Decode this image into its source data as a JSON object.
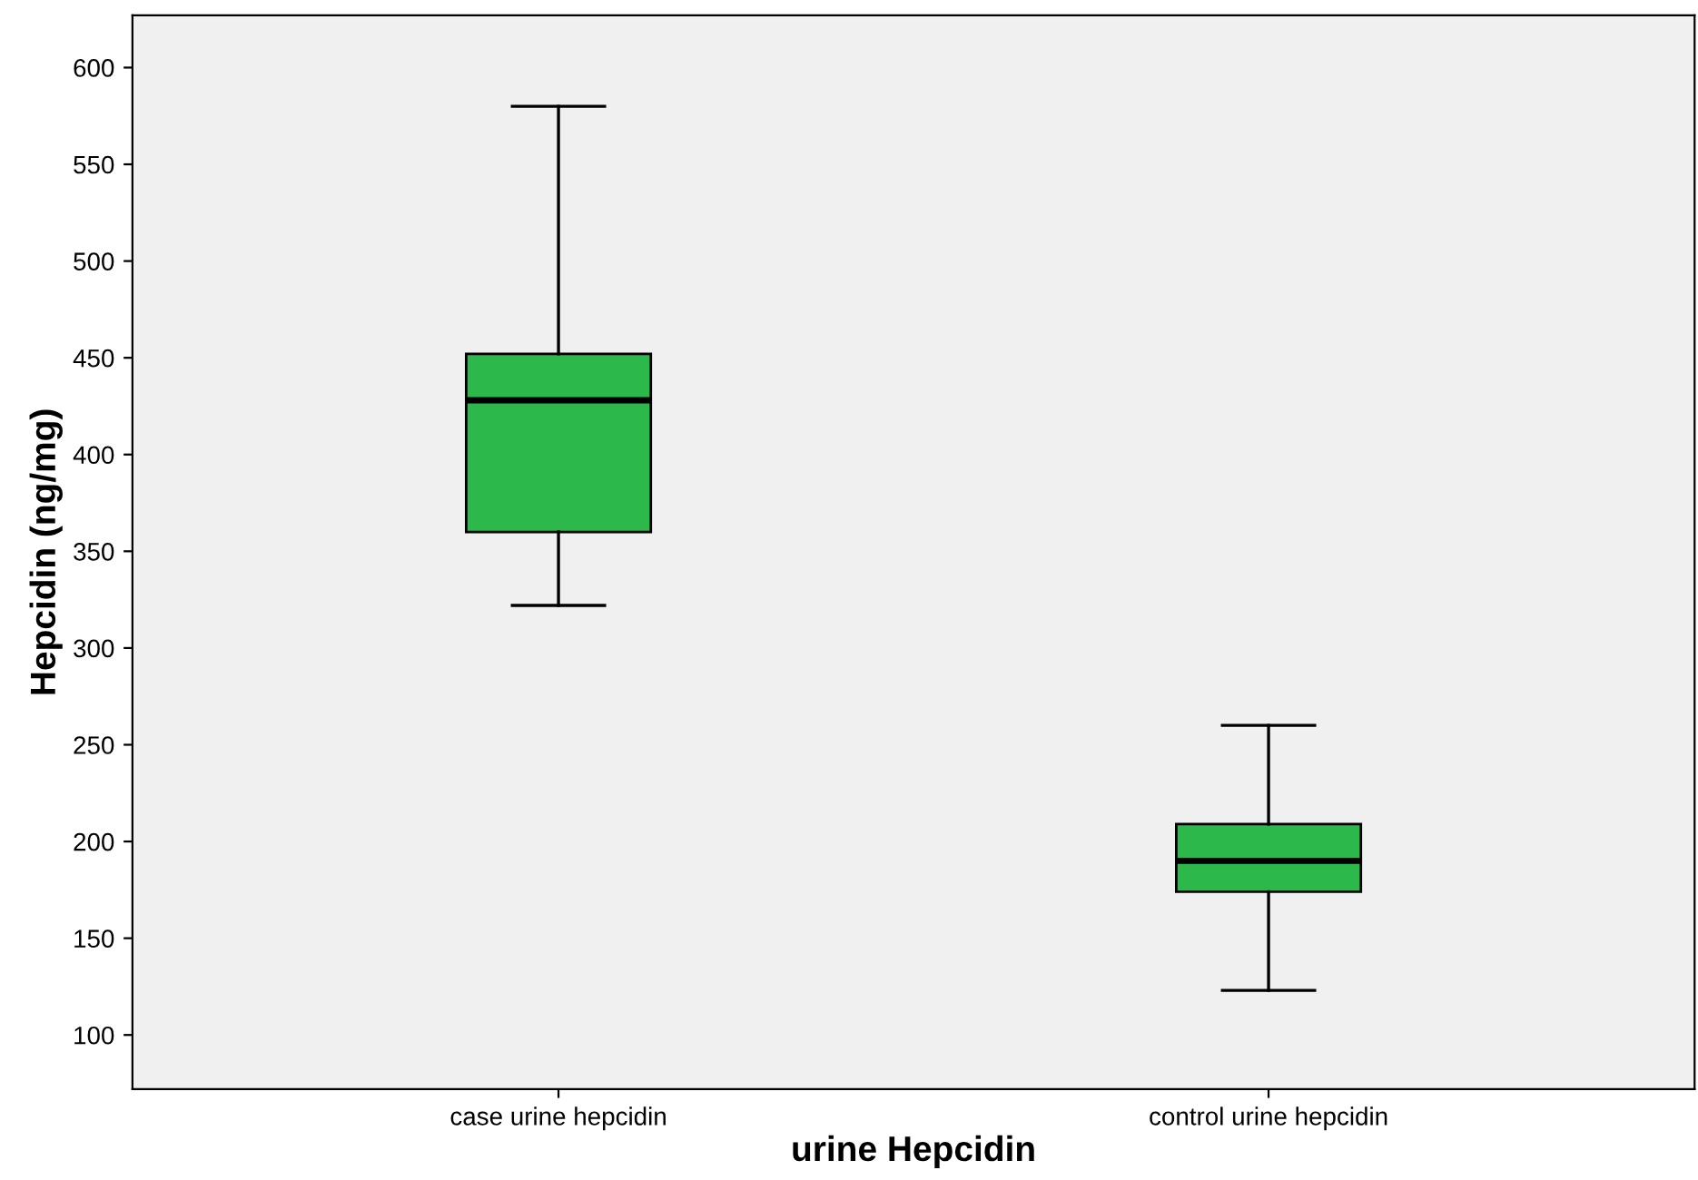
{
  "chart_data": {
    "type": "box",
    "xlabel": "urine Hepcidin",
    "ylabel": "Hepcidin (ng/mg)",
    "categories": [
      "case urine hepcidin",
      "control urine hepcidin"
    ],
    "boxes": [
      {
        "low": 322,
        "q1": 360,
        "median": 428,
        "q3": 452,
        "high": 580
      },
      {
        "low": 123,
        "q1": 174,
        "median": 190,
        "q3": 209,
        "high": 260
      }
    ],
    "color": "#2db84b",
    "ylim": [
      72,
      627
    ],
    "yticks": [
      100,
      150,
      200,
      250,
      300,
      350,
      400,
      450,
      500,
      550,
      600
    ],
    "grid": false
  }
}
